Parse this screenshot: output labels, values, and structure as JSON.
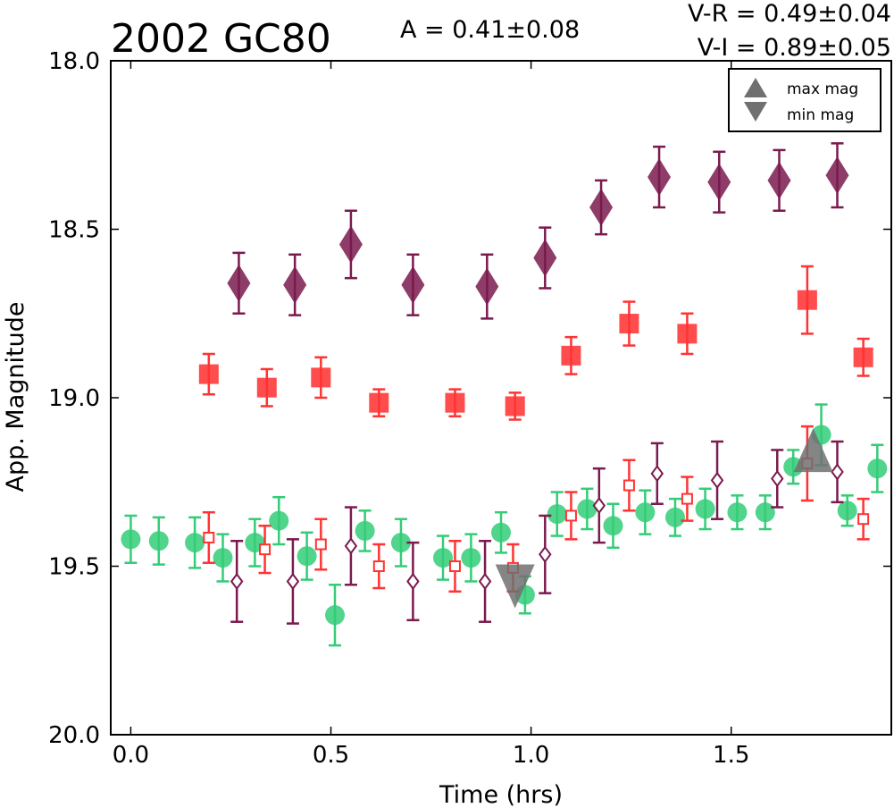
{
  "chart_data": {
    "type": "scatter",
    "title": "2002 GC80",
    "annotations": {
      "amplitude": "A  = 0.41±0.08",
      "v_r": "V-R = 0.49±0.04",
      "v_i": "V-I  = 0.89±0.05"
    },
    "xlabel": "Time (hrs)",
    "ylabel": "App. Magnitude",
    "xlim": [
      -0.05,
      1.9
    ],
    "ylim": [
      20.0,
      18.0
    ],
    "y_inverted": true,
    "x_ticks": [
      "0.0",
      "0.5",
      "1.0",
      "1.5"
    ],
    "x_tick_values": [
      0.0,
      0.5,
      1.0,
      1.5
    ],
    "y_ticks": [
      "18.0",
      "18.5",
      "19.0",
      "19.5",
      "20.0"
    ],
    "y_tick_values": [
      18.0,
      18.5,
      19.0,
      19.5,
      20.0
    ],
    "grid": false,
    "legend_position": "top-right",
    "legend": [
      {
        "label": "max mag",
        "marker": "triangle-up"
      },
      {
        "label": "min mag",
        "marker": "triangle-down"
      }
    ],
    "colors": {
      "green": "#33cc77",
      "red": "#ff3333",
      "purple": "#7a1a4e",
      "extremum": "#707070"
    },
    "series": [
      {
        "marker": "diamond-filled",
        "color": "#7a1a4e",
        "points": [
          {
            "x": 0.27,
            "y": 18.66,
            "err": 0.09
          },
          {
            "x": 0.41,
            "y": 18.665,
            "err": 0.09
          },
          {
            "x": 0.55,
            "y": 18.545,
            "err": 0.1
          },
          {
            "x": 0.705,
            "y": 18.665,
            "err": 0.09
          },
          {
            "x": 0.89,
            "y": 18.67,
            "err": 0.095
          },
          {
            "x": 1.035,
            "y": 18.585,
            "err": 0.09
          },
          {
            "x": 1.175,
            "y": 18.435,
            "err": 0.08
          },
          {
            "x": 1.32,
            "y": 18.345,
            "err": 0.09
          },
          {
            "x": 1.47,
            "y": 18.36,
            "err": 0.09
          },
          {
            "x": 1.62,
            "y": 18.355,
            "err": 0.09
          },
          {
            "x": 1.765,
            "y": 18.34,
            "err": 0.095
          }
        ]
      },
      {
        "marker": "square-filled",
        "color": "#ff3333",
        "points": [
          {
            "x": 0.195,
            "y": 18.93,
            "err": 0.06
          },
          {
            "x": 0.34,
            "y": 18.97,
            "err": 0.055
          },
          {
            "x": 0.475,
            "y": 18.94,
            "err": 0.06
          },
          {
            "x": 0.62,
            "y": 19.015,
            "err": 0.04
          },
          {
            "x": 0.81,
            "y": 19.015,
            "err": 0.04
          },
          {
            "x": 0.96,
            "y": 19.025,
            "err": 0.04
          },
          {
            "x": 1.1,
            "y": 18.875,
            "err": 0.055
          },
          {
            "x": 1.245,
            "y": 18.78,
            "err": 0.065
          },
          {
            "x": 1.39,
            "y": 18.81,
            "err": 0.06
          },
          {
            "x": 1.69,
            "y": 18.71,
            "err": 0.1
          },
          {
            "x": 1.83,
            "y": 18.88,
            "err": 0.055
          }
        ]
      },
      {
        "marker": "circle-filled",
        "color": "#33cc77",
        "points": [
          {
            "x": 0.0,
            "y": 19.42,
            "err": 0.07
          },
          {
            "x": 0.07,
            "y": 19.425,
            "err": 0.07
          },
          {
            "x": 0.16,
            "y": 19.43,
            "err": 0.075
          },
          {
            "x": 0.23,
            "y": 19.475,
            "err": 0.07
          },
          {
            "x": 0.31,
            "y": 19.43,
            "err": 0.07
          },
          {
            "x": 0.37,
            "y": 19.365,
            "err": 0.07
          },
          {
            "x": 0.44,
            "y": 19.47,
            "err": 0.07
          },
          {
            "x": 0.51,
            "y": 19.645,
            "err": 0.09
          },
          {
            "x": 0.585,
            "y": 19.395,
            "err": 0.06
          },
          {
            "x": 0.675,
            "y": 19.43,
            "err": 0.07
          },
          {
            "x": 0.78,
            "y": 19.475,
            "err": 0.065
          },
          {
            "x": 0.85,
            "y": 19.475,
            "err": 0.07
          },
          {
            "x": 0.925,
            "y": 19.4,
            "err": 0.06
          },
          {
            "x": 0.985,
            "y": 19.585,
            "err": 0.055
          },
          {
            "x": 1.065,
            "y": 19.345,
            "err": 0.065
          },
          {
            "x": 1.14,
            "y": 19.33,
            "err": 0.06
          },
          {
            "x": 1.205,
            "y": 19.38,
            "err": 0.065
          },
          {
            "x": 1.285,
            "y": 19.34,
            "err": 0.065
          },
          {
            "x": 1.36,
            "y": 19.355,
            "err": 0.055
          },
          {
            "x": 1.435,
            "y": 19.33,
            "err": 0.06
          },
          {
            "x": 1.515,
            "y": 19.34,
            "err": 0.05
          },
          {
            "x": 1.585,
            "y": 19.34,
            "err": 0.05
          },
          {
            "x": 1.655,
            "y": 19.205,
            "err": 0.05
          },
          {
            "x": 1.725,
            "y": 19.11,
            "err": 0.09
          },
          {
            "x": 1.79,
            "y": 19.335,
            "err": 0.045
          },
          {
            "x": 1.865,
            "y": 19.21,
            "err": 0.07
          }
        ]
      },
      {
        "marker": "diamond-open",
        "color": "#7a1a4e",
        "points": [
          {
            "x": 0.265,
            "y": 19.545,
            "err": 0.12
          },
          {
            "x": 0.405,
            "y": 19.545,
            "err": 0.125
          },
          {
            "x": 0.55,
            "y": 19.44,
            "err": 0.115
          },
          {
            "x": 0.705,
            "y": 19.545,
            "err": 0.115
          },
          {
            "x": 0.885,
            "y": 19.545,
            "err": 0.12
          },
          {
            "x": 1.035,
            "y": 19.465,
            "err": 0.115
          },
          {
            "x": 1.17,
            "y": 19.32,
            "err": 0.11
          },
          {
            "x": 1.315,
            "y": 19.225,
            "err": 0.09
          },
          {
            "x": 1.465,
            "y": 19.245,
            "err": 0.115
          },
          {
            "x": 1.615,
            "y": 19.24,
            "err": 0.085
          },
          {
            "x": 1.765,
            "y": 19.22,
            "err": 0.09
          }
        ]
      },
      {
        "marker": "square-open",
        "color": "#ff3333",
        "points": [
          {
            "x": 0.195,
            "y": 19.415,
            "err": 0.075
          },
          {
            "x": 0.335,
            "y": 19.45,
            "err": 0.07
          },
          {
            "x": 0.475,
            "y": 19.435,
            "err": 0.075
          },
          {
            "x": 0.62,
            "y": 19.5,
            "err": 0.065
          },
          {
            "x": 0.81,
            "y": 19.5,
            "err": 0.075
          },
          {
            "x": 0.955,
            "y": 19.505,
            "err": 0.07
          },
          {
            "x": 1.1,
            "y": 19.35,
            "err": 0.07
          },
          {
            "x": 1.245,
            "y": 19.26,
            "err": 0.075
          },
          {
            "x": 1.39,
            "y": 19.3,
            "err": 0.065
          },
          {
            "x": 1.69,
            "y": 19.195,
            "err": 0.11
          },
          {
            "x": 1.83,
            "y": 19.36,
            "err": 0.06
          }
        ]
      }
    ],
    "extrema": [
      {
        "label": "min mag",
        "marker": "triangle-down",
        "x": 0.96,
        "y": 19.545,
        "color": "#707070"
      },
      {
        "label": "max mag",
        "marker": "triangle-up",
        "x": 1.705,
        "y": 19.17,
        "color": "#707070"
      }
    ]
  }
}
